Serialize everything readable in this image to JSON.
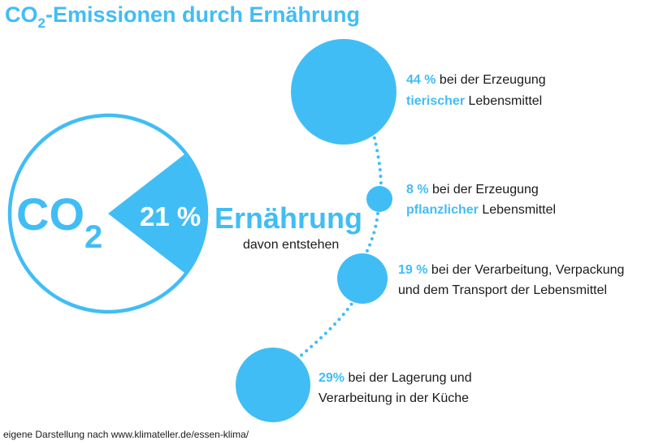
{
  "title": {
    "prefix": "CO",
    "subscript": "2",
    "suffix": "-Emissionen durch Ernährung"
  },
  "main_circle": {
    "co2_letters": "CO",
    "co2_subscript": "2",
    "percent": "21 %",
    "share": 0.21,
    "label": "Ernährung",
    "sublabel": "davon entstehen"
  },
  "items": [
    {
      "value": "44 %",
      "share": 0.44,
      "line1_rest": " bei der Erzeugung",
      "line2_highlight": "tierischer",
      "line2_rest": " Lebensmittel"
    },
    {
      "value": "8 %",
      "share": 0.08,
      "line1_rest": " bei der Erzeugung",
      "line2_highlight": "pflanzlicher",
      "line2_rest": " Lebensmittel"
    },
    {
      "value": "19 %",
      "share": 0.19,
      "line1_rest": " bei der Verarbeitung, Verpackung",
      "line2_highlight": "",
      "line2_rest": "und dem Transport der Lebensmittel"
    },
    {
      "value": "29%",
      "share": 0.29,
      "line1_rest": " bei der Lagerung und",
      "line2_highlight": "",
      "line2_rest": "Verarbeitung in der Küche"
    }
  ],
  "source": "eigene Darstellung nach www.klimateller.de/essen-klima/",
  "colors": {
    "accent": "#41bdf5",
    "text": "#1a1a1a",
    "background": "#ffffff"
  }
}
